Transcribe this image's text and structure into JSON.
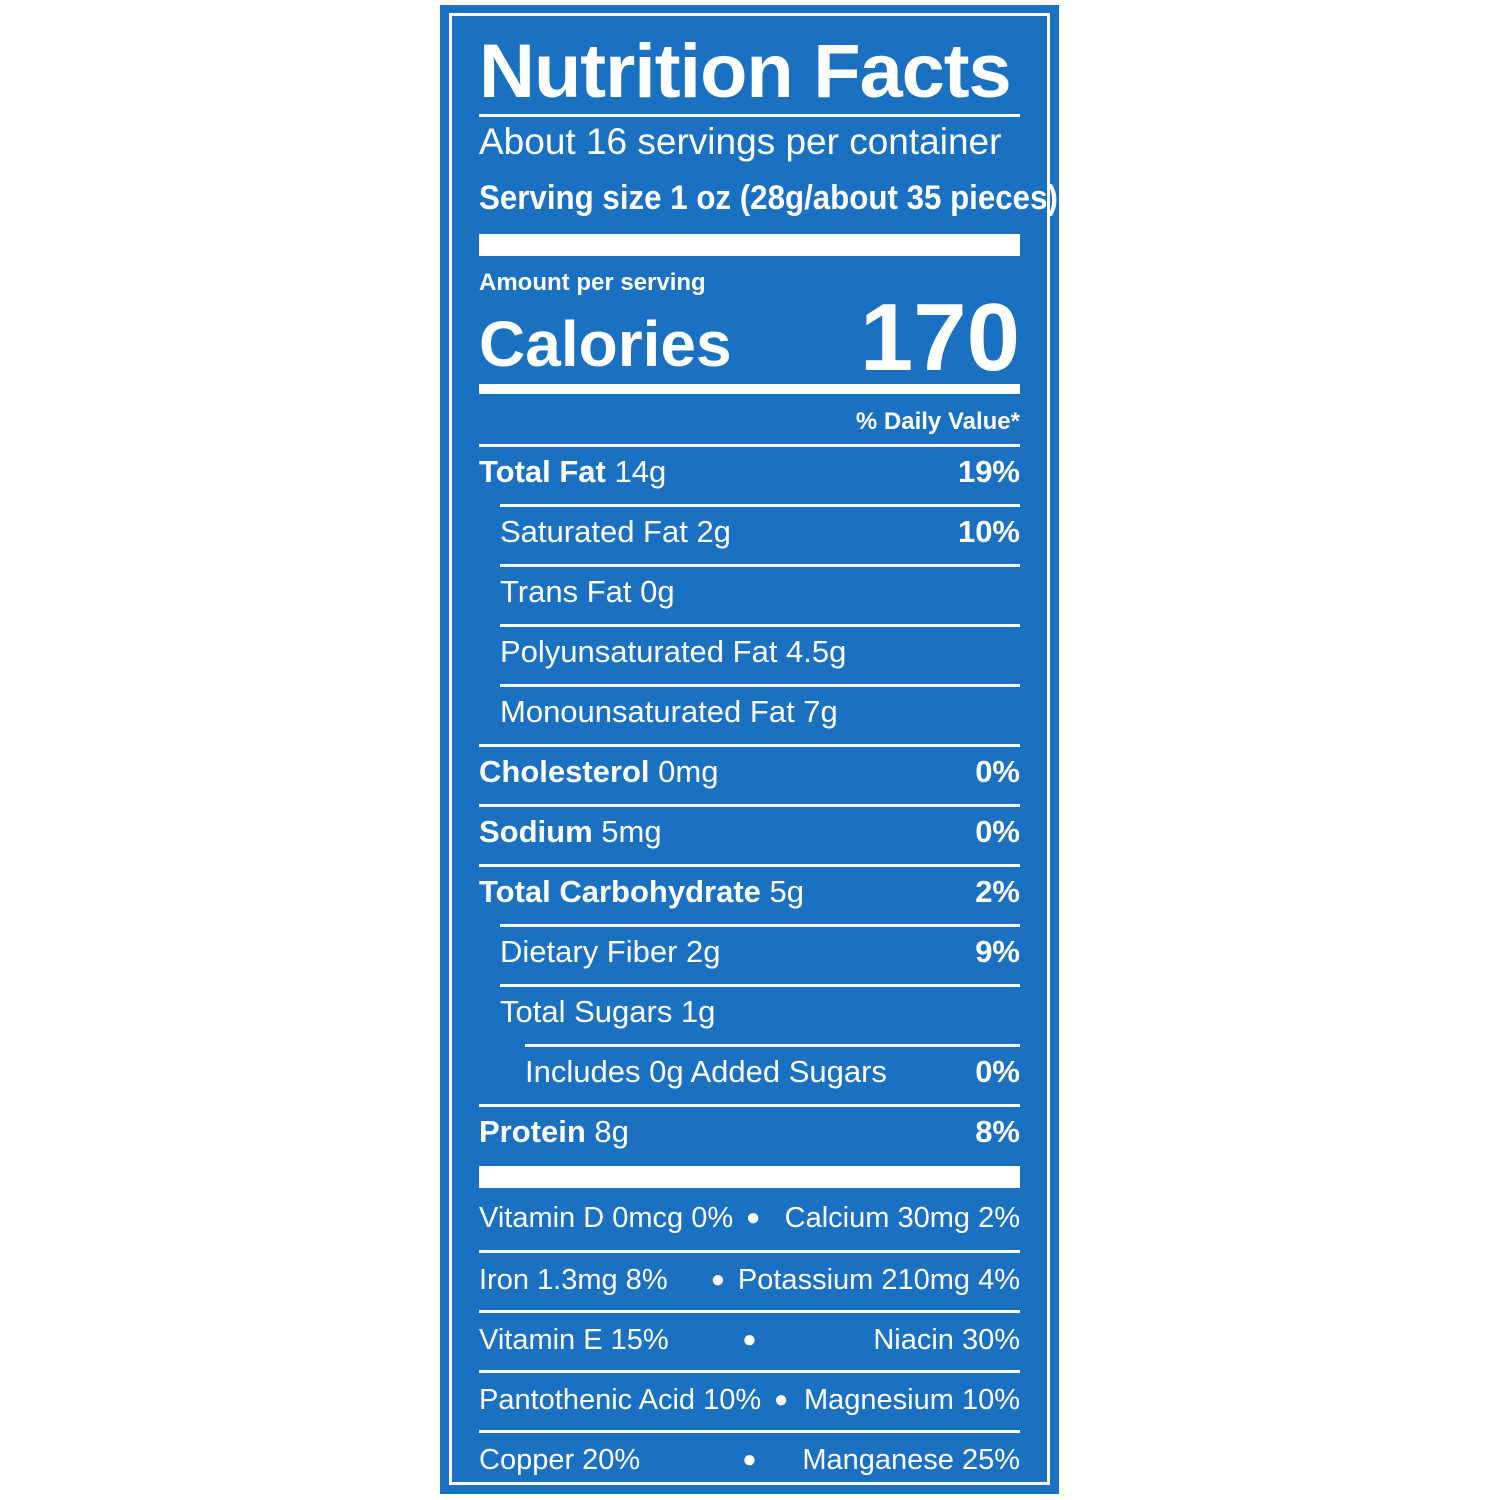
{
  "label": {
    "title": "Nutrition Facts",
    "servings_per_container": "About 16 servings per container",
    "serving_size": "Serving size 1 oz (28g/about 35 pieces)",
    "amount_per_serving": "Amount per serving",
    "calories_label": "Calories",
    "calories_value": "170",
    "daily_value_header": "% Daily Value*",
    "nutrients": [
      {
        "name": "Total Fat",
        "amount": "14g",
        "dv": "19%"
      },
      {
        "name": "Saturated Fat 2g",
        "amount": "",
        "dv": "10%"
      },
      {
        "name": "Trans Fat 0g",
        "amount": "",
        "dv": ""
      },
      {
        "name": "Polyunsaturated Fat 4.5g",
        "amount": "",
        "dv": ""
      },
      {
        "name": "Monounsaturated Fat 7g",
        "amount": "",
        "dv": ""
      },
      {
        "name": "Cholesterol",
        "amount": "0mg",
        "dv": "0%"
      },
      {
        "name": "Sodium",
        "amount": "5mg",
        "dv": "0%"
      },
      {
        "name": "Total Carbohydrate",
        "amount": "5g",
        "dv": "2%"
      },
      {
        "name": "Dietary Fiber 2g",
        "amount": "",
        "dv": "9%"
      },
      {
        "name": "Total Sugars 1g",
        "amount": "",
        "dv": ""
      },
      {
        "name": "Includes 0g Added Sugars",
        "amount": "",
        "dv": "0%"
      },
      {
        "name": "Protein",
        "amount": "8g",
        "dv": "8%"
      }
    ],
    "vitamins": [
      {
        "left": "Vitamin D 0mcg 0%",
        "right": "Calcium 30mg 2%"
      },
      {
        "left": "Iron 1.3mg 8%",
        "right": "Potassium 210mg 4%"
      },
      {
        "left": "Vitamin E 15%",
        "right": "Niacin 30%"
      },
      {
        "left": "Pantothenic Acid 10%",
        "right": "Magnesium 10%"
      },
      {
        "left": "Copper 20%",
        "right": "Manganese 25%"
      }
    ],
    "bullet": "●"
  },
  "colors": {
    "background": "#1a71c2",
    "text": "#ffffff"
  }
}
